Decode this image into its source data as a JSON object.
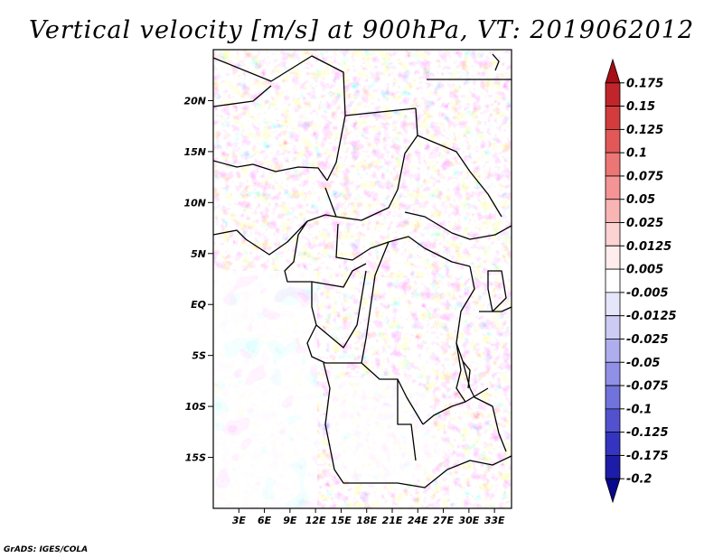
{
  "title": "Vertical velocity [m/s] at 900hPa, VT: 2019062012",
  "credit": "GrADS: IGES/COLA",
  "map": {
    "lon_range": [
      0,
      35
    ],
    "lat_range": [
      -20,
      25
    ],
    "lat_ticks": [
      {
        "value": 20,
        "label": "20N"
      },
      {
        "value": 15,
        "label": "15N"
      },
      {
        "value": 10,
        "label": "10N"
      },
      {
        "value": 5,
        "label": "5N"
      },
      {
        "value": 0,
        "label": "EQ"
      },
      {
        "value": -5,
        "label": "5S"
      },
      {
        "value": -10,
        "label": "10S"
      },
      {
        "value": -15,
        "label": "15S"
      }
    ],
    "lon_ticks": [
      {
        "value": 3,
        "label": "3E"
      },
      {
        "value": 6,
        "label": "6E"
      },
      {
        "value": 9,
        "label": "9E"
      },
      {
        "value": 12,
        "label": "12E"
      },
      {
        "value": 15,
        "label": "15E"
      },
      {
        "value": 18,
        "label": "18E"
      },
      {
        "value": 21,
        "label": "21E"
      },
      {
        "value": 24,
        "label": "24E"
      },
      {
        "value": 27,
        "label": "27E"
      },
      {
        "value": 30,
        "label": "30E"
      },
      {
        "value": 33,
        "label": "33E"
      }
    ]
  },
  "colorbar": {
    "levels": [
      "0.175",
      "0.15",
      "0.125",
      "0.1",
      "0.075",
      "0.05",
      "0.025",
      "0.0125",
      "0.005",
      "-0.005",
      "-0.0125",
      "-0.025",
      "-0.05",
      "-0.075",
      "-0.1",
      "-0.125",
      "-0.175",
      "-0.2"
    ],
    "colors": [
      "#a50f15",
      "#c0252b",
      "#d33c3c",
      "#e25858",
      "#ec7676",
      "#f49494",
      "#f9b4b4",
      "#fcd2d2",
      "#ffecec",
      "#ffffff",
      "#e6e6fa",
      "#cbcbf4",
      "#aeaeee",
      "#9090e6",
      "#7272dc",
      "#5252cf",
      "#3434c0",
      "#1c1ca8",
      "#08088a"
    ]
  }
}
